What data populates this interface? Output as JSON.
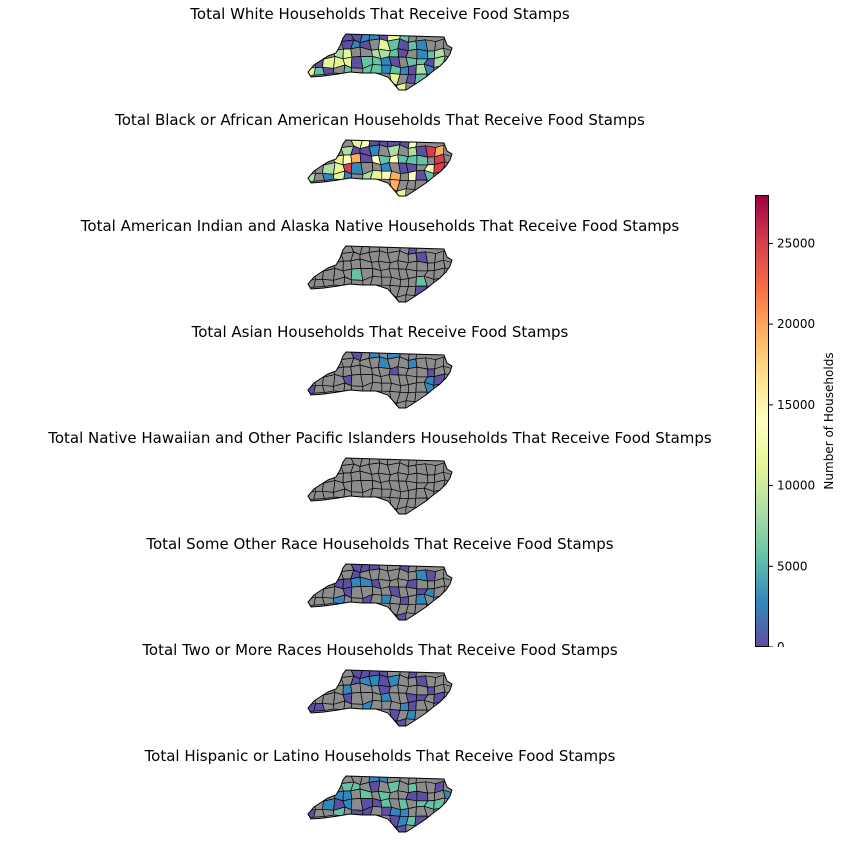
{
  "colormap": {
    "name": "Spectral_r",
    "stops": [
      "#5e4fa2",
      "#3288bd",
      "#66c2a5",
      "#abdda4",
      "#e6f598",
      "#ffffbf",
      "#fee08b",
      "#fdae61",
      "#f46d43",
      "#d53e4f",
      "#9e0142"
    ],
    "min": 0,
    "max": 28000,
    "missing_color": "#8c8c8c",
    "county_edge_color": "#000000"
  },
  "colorbar": {
    "label": "Number of Households",
    "ticks": [
      0,
      5000,
      10000,
      15000,
      20000,
      25000
    ]
  },
  "panels": [
    {
      "title": "Total White Households That Receive Food Stamps",
      "palette": [
        "#66c2a5",
        "#3288bd",
        "#abdda4",
        "#5e4fa2",
        "#3288bd",
        "#66c2a5",
        "#5e4fa2",
        "#e6f598"
      ],
      "missing_share": 0.15
    },
    {
      "title": "Total Black or African American Households That Receive Food Stamps",
      "palette": [
        "#5e4fa2",
        "#3288bd",
        "#5e4fa2",
        "#66c2a5",
        "#abdda4",
        "#5e4fa2",
        "#fdae61",
        "#e6f598",
        "#ffffbf",
        "#d53e4f"
      ],
      "missing_share": 0.3
    },
    {
      "title": "Total American Indian and Alaska Native Households That Receive Food Stamps",
      "palette": [
        "#5e4fa2",
        "#5e4fa2",
        "#66c2a5"
      ],
      "missing_share": 0.88
    },
    {
      "title": "Total Asian Households That Receive Food Stamps",
      "palette": [
        "#5e4fa2",
        "#5e4fa2",
        "#3288bd"
      ],
      "missing_share": 0.72
    },
    {
      "title": "Total Native Hawaiian and Other Pacific Islanders Households That Receive Food Stamps",
      "palette": [
        "#5e4fa2"
      ],
      "missing_share": 0.98
    },
    {
      "title": "Total Some Other Race Households That Receive Food Stamps",
      "palette": [
        "#5e4fa2",
        "#5e4fa2",
        "#3288bd"
      ],
      "missing_share": 0.62
    },
    {
      "title": "Total Two or More Races Households That Receive Food Stamps",
      "palette": [
        "#5e4fa2",
        "#3288bd",
        "#5e4fa2",
        "#5e4fa2"
      ],
      "missing_share": 0.45
    },
    {
      "title": "Total Hispanic or Latino Households That Receive Food Stamps",
      "palette": [
        "#5e4fa2",
        "#3288bd",
        "#5e4fa2",
        "#66c2a5"
      ],
      "missing_share": 0.4
    }
  ]
}
